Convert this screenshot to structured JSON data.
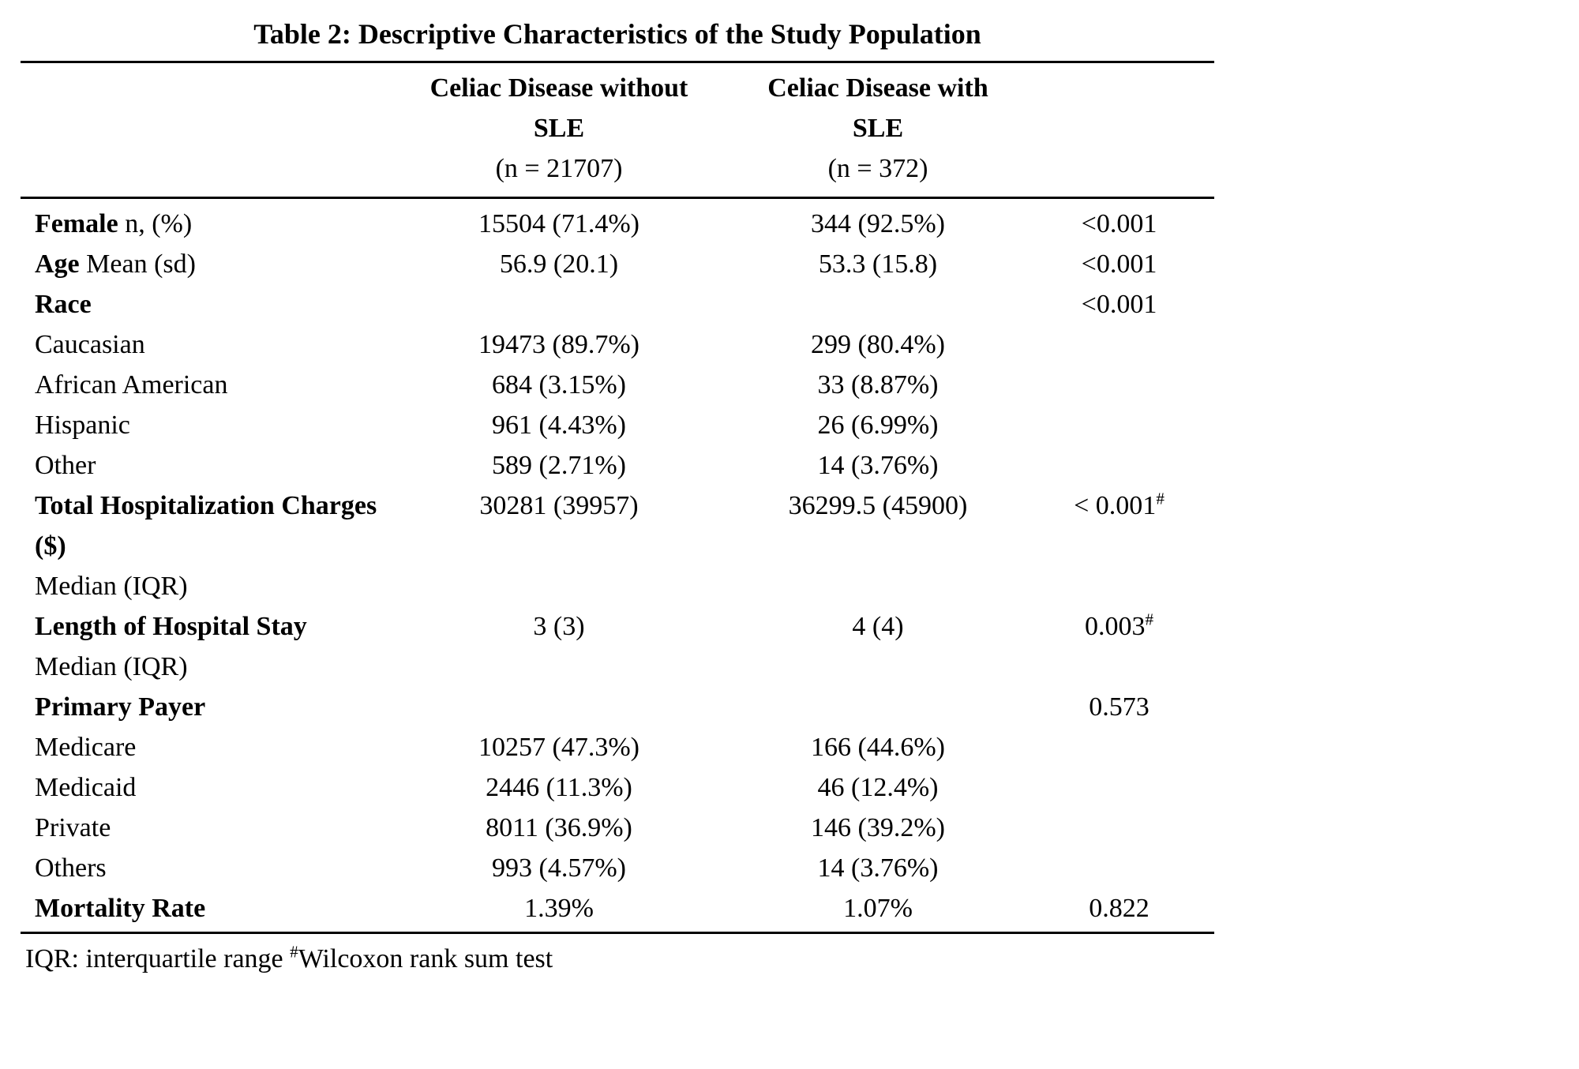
{
  "title": "Table 2: Descriptive Characteristics of the Study Population",
  "columns": {
    "without_sle": {
      "line1": "Celiac Disease without",
      "line2": "SLE",
      "line3": "(n = 21707)"
    },
    "with_sle": {
      "line1": "Celiac Disease with",
      "line2": "SLE",
      "line3": "(n = 372)"
    }
  },
  "rows": [
    {
      "label_bold": "Female",
      "label_rest": " n, (%)",
      "label_sub": "",
      "v1": "15504 (71.4%)",
      "v2": "344 (92.5%)",
      "p": "<0.001",
      "p_sup": ""
    },
    {
      "label_bold": "Age",
      "label_rest": " Mean (sd)",
      "label_sub": "",
      "v1": "56.9 (20.1)",
      "v2": "53.3 (15.8)",
      "p": "<0.001",
      "p_sup": ""
    },
    {
      "label_bold": "Race",
      "label_rest": "",
      "label_sub": "",
      "v1": "",
      "v2": "",
      "p": "<0.001",
      "p_sup": ""
    },
    {
      "label_bold": "",
      "label_rest": "Caucasian",
      "label_sub": "",
      "v1": "19473 (89.7%)",
      "v2": "299 (80.4%)",
      "p": "",
      "p_sup": ""
    },
    {
      "label_bold": "",
      "label_rest": "African American",
      "label_sub": "",
      "v1": "684 (3.15%)",
      "v2": "33 (8.87%)",
      "p": "",
      "p_sup": ""
    },
    {
      "label_bold": "",
      "label_rest": "Hispanic",
      "label_sub": "",
      "v1": "961 (4.43%)",
      "v2": "26 (6.99%)",
      "p": "",
      "p_sup": ""
    },
    {
      "label_bold": "",
      "label_rest": "Other",
      "label_sub": "",
      "v1": "589 (2.71%)",
      "v2": "14 (3.76%)",
      "p": "",
      "p_sup": ""
    },
    {
      "label_bold": "Total Hospitalization Charges ($)",
      "label_rest": "",
      "label_sub": "Median (IQR)",
      "v1": "30281 (39957)",
      "v2": "36299.5 (45900)",
      "p": "< 0.001",
      "p_sup": "#"
    },
    {
      "label_bold": "Length of Hospital Stay",
      "label_rest": "",
      "label_sub": "Median (IQR)",
      "v1": "3 (3)",
      "v2": "4 (4)",
      "p": "0.003",
      "p_sup": "#"
    },
    {
      "label_bold": "Primary Payer",
      "label_rest": "",
      "label_sub": "",
      "v1": "",
      "v2": "",
      "p": "0.573",
      "p_sup": ""
    },
    {
      "label_bold": "",
      "label_rest": "Medicare",
      "label_sub": "",
      "v1": "10257 (47.3%)",
      "v2": "166 (44.6%)",
      "p": "",
      "p_sup": ""
    },
    {
      "label_bold": "",
      "label_rest": "Medicaid",
      "label_sub": "",
      "v1": "2446 (11.3%)",
      "v2": "46 (12.4%)",
      "p": "",
      "p_sup": ""
    },
    {
      "label_bold": "",
      "label_rest": "Private",
      "label_sub": "",
      "v1": "8011 (36.9%)",
      "v2": "146 (39.2%)",
      "p": "",
      "p_sup": ""
    },
    {
      "label_bold": "",
      "label_rest": "Others",
      "label_sub": "",
      "v1": "993 (4.57%)",
      "v2": "14 (3.76%)",
      "p": "",
      "p_sup": ""
    },
    {
      "label_bold": "Mortality Rate",
      "label_rest": "",
      "label_sub": "",
      "v1": "1.39%",
      "v2": "1.07%",
      "p": "0.822",
      "p_sup": ""
    }
  ],
  "footnote": {
    "part1": "IQR: interquartile range ",
    "sup": "#",
    "part2": "Wilcoxon rank sum test"
  }
}
